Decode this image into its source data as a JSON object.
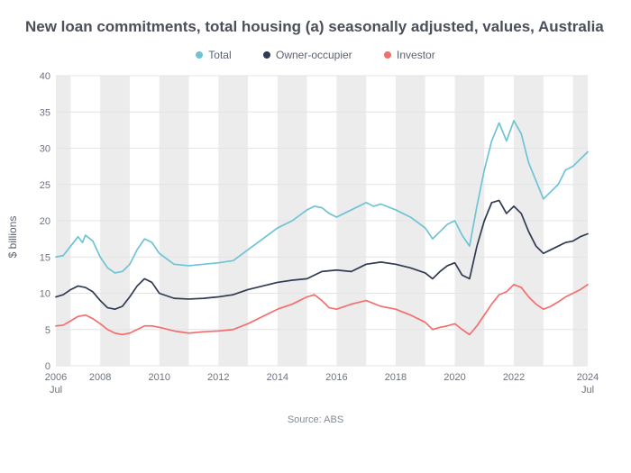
{
  "chart": {
    "type": "line",
    "title": "New loan commitments, total housing (a) seasonally adjusted, values, Australia",
    "ylabel": "$ billions",
    "source": "Source: ABS",
    "background_color": "#ffffff",
    "band_color": "#ececec",
    "grid_color": "#e2e4e8",
    "title_color": "#4a4f5a",
    "text_color": "#6b7280",
    "title_fontsize": 17,
    "axis_fontsize": 11,
    "ylim": [
      0,
      40
    ],
    "ytick_step": 5,
    "x_start": 2006.5,
    "x_end": 2024.5,
    "x_ticks": [
      {
        "x": 2006.5,
        "label": "2006",
        "sublabel": "Jul"
      },
      {
        "x": 2008,
        "label": "2008"
      },
      {
        "x": 2010,
        "label": "2010"
      },
      {
        "x": 2012,
        "label": "2012"
      },
      {
        "x": 2014,
        "label": "2014"
      },
      {
        "x": 2016,
        "label": "2016"
      },
      {
        "x": 2018,
        "label": "2018"
      },
      {
        "x": 2020,
        "label": "2020"
      },
      {
        "x": 2022,
        "label": "2022"
      },
      {
        "x": 2024.5,
        "label": "2024",
        "sublabel": "Jul"
      }
    ],
    "bands": [
      [
        2006.5,
        2007
      ],
      [
        2008,
        2009
      ],
      [
        2010,
        2011
      ],
      [
        2012,
        2013
      ],
      [
        2014,
        2015
      ],
      [
        2016,
        2017
      ],
      [
        2018,
        2019
      ],
      [
        2020,
        2021
      ],
      [
        2022,
        2023
      ],
      [
        2024,
        2024.5
      ]
    ],
    "line_width": 1.7,
    "series": [
      {
        "name": "Total",
        "color": "#6ec3d6",
        "data": [
          [
            2006.5,
            15.0
          ],
          [
            2006.75,
            15.2
          ],
          [
            2007.0,
            16.5
          ],
          [
            2007.25,
            17.8
          ],
          [
            2007.4,
            17.0
          ],
          [
            2007.5,
            18.0
          ],
          [
            2007.75,
            17.2
          ],
          [
            2008.0,
            15.0
          ],
          [
            2008.25,
            13.5
          ],
          [
            2008.5,
            12.8
          ],
          [
            2008.75,
            13.0
          ],
          [
            2009.0,
            14.0
          ],
          [
            2009.25,
            16.0
          ],
          [
            2009.5,
            17.5
          ],
          [
            2009.75,
            17.0
          ],
          [
            2010.0,
            15.5
          ],
          [
            2010.5,
            14.0
          ],
          [
            2011.0,
            13.8
          ],
          [
            2011.5,
            14.0
          ],
          [
            2012.0,
            14.2
          ],
          [
            2012.5,
            14.5
          ],
          [
            2013.0,
            16.0
          ],
          [
            2013.5,
            17.5
          ],
          [
            2014.0,
            19.0
          ],
          [
            2014.5,
            20.0
          ],
          [
            2015.0,
            21.5
          ],
          [
            2015.25,
            22.0
          ],
          [
            2015.5,
            21.8
          ],
          [
            2015.75,
            21.0
          ],
          [
            2016.0,
            20.5
          ],
          [
            2016.5,
            21.5
          ],
          [
            2017.0,
            22.5
          ],
          [
            2017.25,
            22.0
          ],
          [
            2017.5,
            22.3
          ],
          [
            2018.0,
            21.5
          ],
          [
            2018.5,
            20.5
          ],
          [
            2019.0,
            19.0
          ],
          [
            2019.25,
            17.5
          ],
          [
            2019.5,
            18.5
          ],
          [
            2019.75,
            19.5
          ],
          [
            2020.0,
            20.0
          ],
          [
            2020.25,
            18.0
          ],
          [
            2020.5,
            16.5
          ],
          [
            2020.75,
            22.0
          ],
          [
            2021.0,
            27.0
          ],
          [
            2021.25,
            31.0
          ],
          [
            2021.5,
            33.5
          ],
          [
            2021.75,
            31.0
          ],
          [
            2022.0,
            33.8
          ],
          [
            2022.25,
            32.0
          ],
          [
            2022.5,
            28.0
          ],
          [
            2022.75,
            25.5
          ],
          [
            2023.0,
            23.0
          ],
          [
            2023.25,
            24.0
          ],
          [
            2023.5,
            25.0
          ],
          [
            2023.75,
            27.0
          ],
          [
            2024.0,
            27.5
          ],
          [
            2024.25,
            28.5
          ],
          [
            2024.5,
            29.5
          ]
        ]
      },
      {
        "name": "Owner-occupier",
        "color": "#2f3b52",
        "data": [
          [
            2006.5,
            9.5
          ],
          [
            2006.75,
            9.8
          ],
          [
            2007.0,
            10.5
          ],
          [
            2007.25,
            11.0
          ],
          [
            2007.5,
            10.8
          ],
          [
            2007.75,
            10.2
          ],
          [
            2008.0,
            9.0
          ],
          [
            2008.25,
            8.0
          ],
          [
            2008.5,
            7.8
          ],
          [
            2008.75,
            8.2
          ],
          [
            2009.0,
            9.5
          ],
          [
            2009.25,
            11.0
          ],
          [
            2009.5,
            12.0
          ],
          [
            2009.75,
            11.5
          ],
          [
            2010.0,
            10.0
          ],
          [
            2010.5,
            9.3
          ],
          [
            2011.0,
            9.2
          ],
          [
            2011.5,
            9.3
          ],
          [
            2012.0,
            9.5
          ],
          [
            2012.5,
            9.8
          ],
          [
            2013.0,
            10.5
          ],
          [
            2013.5,
            11.0
          ],
          [
            2014.0,
            11.5
          ],
          [
            2014.5,
            11.8
          ],
          [
            2015.0,
            12.0
          ],
          [
            2015.5,
            13.0
          ],
          [
            2016.0,
            13.2
          ],
          [
            2016.5,
            13.0
          ],
          [
            2017.0,
            14.0
          ],
          [
            2017.5,
            14.3
          ],
          [
            2018.0,
            14.0
          ],
          [
            2018.5,
            13.5
          ],
          [
            2019.0,
            12.8
          ],
          [
            2019.25,
            12.0
          ],
          [
            2019.5,
            13.0
          ],
          [
            2019.75,
            13.8
          ],
          [
            2020.0,
            14.2
          ],
          [
            2020.25,
            12.5
          ],
          [
            2020.5,
            12.0
          ],
          [
            2020.75,
            16.5
          ],
          [
            2021.0,
            20.0
          ],
          [
            2021.25,
            22.5
          ],
          [
            2021.5,
            22.8
          ],
          [
            2021.75,
            21.0
          ],
          [
            2022.0,
            22.0
          ],
          [
            2022.25,
            21.0
          ],
          [
            2022.5,
            18.5
          ],
          [
            2022.75,
            16.5
          ],
          [
            2023.0,
            15.5
          ],
          [
            2023.25,
            16.0
          ],
          [
            2023.5,
            16.5
          ],
          [
            2023.75,
            17.0
          ],
          [
            2024.0,
            17.2
          ],
          [
            2024.25,
            17.8
          ],
          [
            2024.5,
            18.2
          ]
        ]
      },
      {
        "name": "Investor",
        "color": "#f36f6f",
        "data": [
          [
            2006.5,
            5.5
          ],
          [
            2006.75,
            5.6
          ],
          [
            2007.0,
            6.2
          ],
          [
            2007.25,
            6.8
          ],
          [
            2007.5,
            7.0
          ],
          [
            2007.75,
            6.5
          ],
          [
            2008.0,
            5.8
          ],
          [
            2008.25,
            5.0
          ],
          [
            2008.5,
            4.5
          ],
          [
            2008.75,
            4.3
          ],
          [
            2009.0,
            4.5
          ],
          [
            2009.25,
            5.0
          ],
          [
            2009.5,
            5.5
          ],
          [
            2009.75,
            5.5
          ],
          [
            2010.0,
            5.3
          ],
          [
            2010.5,
            4.8
          ],
          [
            2011.0,
            4.5
          ],
          [
            2011.5,
            4.7
          ],
          [
            2012.0,
            4.8
          ],
          [
            2012.5,
            5.0
          ],
          [
            2013.0,
            5.8
          ],
          [
            2013.5,
            6.8
          ],
          [
            2014.0,
            7.8
          ],
          [
            2014.5,
            8.5
          ],
          [
            2015.0,
            9.5
          ],
          [
            2015.25,
            9.8
          ],
          [
            2015.5,
            9.0
          ],
          [
            2015.75,
            8.0
          ],
          [
            2016.0,
            7.8
          ],
          [
            2016.5,
            8.5
          ],
          [
            2017.0,
            9.0
          ],
          [
            2017.5,
            8.2
          ],
          [
            2018.0,
            7.8
          ],
          [
            2018.5,
            7.0
          ],
          [
            2019.0,
            6.0
          ],
          [
            2019.25,
            5.0
          ],
          [
            2019.5,
            5.3
          ],
          [
            2019.75,
            5.5
          ],
          [
            2020.0,
            5.8
          ],
          [
            2020.25,
            5.0
          ],
          [
            2020.5,
            4.3
          ],
          [
            2020.75,
            5.5
          ],
          [
            2021.0,
            7.0
          ],
          [
            2021.25,
            8.5
          ],
          [
            2021.5,
            9.8
          ],
          [
            2021.75,
            10.2
          ],
          [
            2022.0,
            11.2
          ],
          [
            2022.25,
            10.8
          ],
          [
            2022.5,
            9.5
          ],
          [
            2022.75,
            8.5
          ],
          [
            2023.0,
            7.8
          ],
          [
            2023.25,
            8.2
          ],
          [
            2023.5,
            8.8
          ],
          [
            2023.75,
            9.5
          ],
          [
            2024.0,
            10.0
          ],
          [
            2024.25,
            10.5
          ],
          [
            2024.5,
            11.2
          ]
        ]
      }
    ]
  }
}
